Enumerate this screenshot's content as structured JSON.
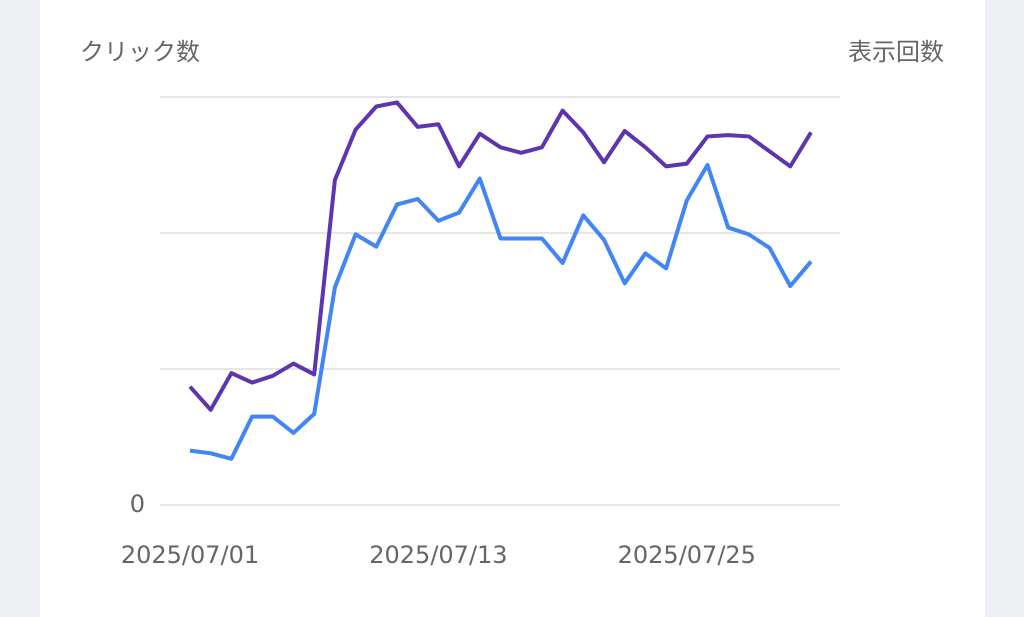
{
  "chart_data": {
    "type": "line",
    "y_label": "クリック数",
    "y2_label": "表示回数",
    "categories": [
      "2025/07/01",
      null,
      null,
      null,
      null,
      null,
      null,
      null,
      null,
      null,
      null,
      null,
      "2025/07/13",
      null,
      null,
      null,
      null,
      null,
      null,
      null,
      null,
      null,
      null,
      null,
      "2025/07/25",
      null,
      null,
      null,
      null,
      null,
      null
    ],
    "series": [
      {
        "color": "#4285f4",
        "values": [
          0.4,
          0.38,
          0.34,
          0.65,
          0.65,
          0.53,
          0.67,
          1.6,
          1.99,
          1.9,
          2.21,
          2.25,
          2.09,
          2.15,
          2.4,
          1.96,
          1.96,
          1.96,
          1.78,
          2.13,
          1.95,
          1.63,
          1.85,
          1.74,
          2.24,
          2.5,
          2.04,
          1.99,
          1.89,
          1.61,
          1.79
        ]
      },
      {
        "color": "#5e35b1",
        "axis": "y2",
        "values": [
          0.87,
          0.7,
          0.97,
          0.9,
          0.95,
          1.04,
          0.96,
          2.39,
          2.76,
          2.93,
          2.96,
          2.78,
          2.8,
          2.49,
          2.73,
          2.63,
          2.59,
          2.63,
          2.9,
          2.74,
          2.52,
          2.75,
          2.63,
          2.49,
          2.51,
          2.71,
          2.72,
          2.71,
          2.6,
          2.49,
          2.74
        ]
      }
    ],
    "ylim": [
      0,
      3
    ],
    "yticks": [
      0,
      {
        "value": 1,
        "label": null
      },
      {
        "value": 2,
        "label": null
      },
      {
        "value": 3,
        "label": null
      }
    ],
    "y2lim": [
      0,
      3
    ],
    "grid": true
  }
}
